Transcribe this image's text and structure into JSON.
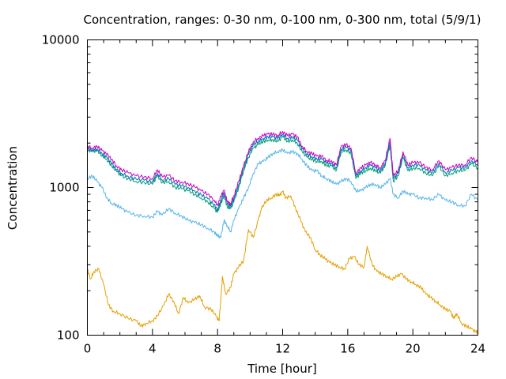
{
  "chart_data": {
    "type": "line",
    "title": "Concentration, ranges: 0-30 nm, 0-100 nm, 0-300 nm, total (5/9/1)",
    "xlabel": "Time [hour]",
    "ylabel": "Concentration",
    "xlim": [
      0,
      24
    ],
    "ylim": [
      100,
      10000
    ],
    "yscale": "log",
    "grid": false,
    "legend": "none",
    "xticks": [
      0,
      4,
      8,
      12,
      16,
      20,
      24
    ],
    "xtick_labels": [
      "0",
      "4",
      "8",
      "12",
      "16",
      "20",
      "24"
    ],
    "yticks": [
      100,
      1000,
      10000
    ],
    "ytick_labels": [
      "100",
      "1000",
      "10000"
    ],
    "series": [
      {
        "color": "#e69f00",
        "x": [
          0,
          0.2,
          0.4,
          0.7,
          1.0,
          1.3,
          1.6,
          2.0,
          2.5,
          3.0,
          3.3,
          3.6,
          4.0,
          4.3,
          4.7,
          5.0,
          5.3,
          5.6,
          5.9,
          6.2,
          6.6,
          6.9,
          7.2,
          7.6,
          7.9,
          8.1,
          8.3,
          8.5,
          8.8,
          9.0,
          9.3,
          9.6,
          9.9,
          10.2,
          10.5,
          10.7,
          11.0,
          11.3,
          11.6,
          11.8,
          12.0,
          12.2,
          12.5,
          12.8,
          13.1,
          13.4,
          13.7,
          14.0,
          14.3,
          14.6,
          14.9,
          15.2,
          15.5,
          15.8,
          16.1,
          16.4,
          16.7,
          17.0,
          17.2,
          17.5,
          17.8,
          18.1,
          18.4,
          18.7,
          19.0,
          19.3,
          19.6,
          19.9,
          20.2,
          20.5,
          20.8,
          21.1,
          21.4,
          21.7,
          22.0,
          22.3,
          22.5,
          22.7,
          23.0,
          23.3,
          23.6,
          23.9,
          24.0
        ],
        "values": [
          280,
          240,
          270,
          280,
          220,
          160,
          145,
          140,
          130,
          125,
          115,
          120,
          125,
          135,
          160,
          190,
          170,
          140,
          180,
          165,
          175,
          185,
          155,
          150,
          135,
          125,
          250,
          190,
          210,
          260,
          290,
          320,
          520,
          460,
          600,
          720,
          820,
          850,
          900,
          880,
          940,
          850,
          880,
          720,
          600,
          500,
          460,
          380,
          350,
          330,
          310,
          300,
          290,
          280,
          330,
          340,
          300,
          290,
          400,
          300,
          270,
          260,
          250,
          240,
          250,
          260,
          240,
          230,
          220,
          210,
          190,
          180,
          170,
          160,
          150,
          145,
          130,
          140,
          120,
          115,
          110,
          105,
          105
        ]
      },
      {
        "color": "#56b4e9",
        "x": [
          0,
          0.3,
          0.6,
          0.9,
          1.2,
          1.5,
          1.8,
          2.1,
          2.5,
          3.0,
          3.5,
          4.0,
          4.3,
          4.6,
          5.0,
          5.4,
          5.8,
          6.2,
          6.6,
          7.0,
          7.4,
          7.8,
          8.0,
          8.2,
          8.4,
          8.6,
          8.8,
          9.0,
          9.3,
          9.6,
          9.9,
          10.2,
          10.5,
          10.8,
          11.1,
          11.4,
          11.7,
          12.0,
          12.3,
          12.6,
          12.9,
          13.2,
          13.5,
          13.8,
          14.1,
          14.4,
          14.7,
          15.0,
          15.3,
          15.6,
          15.9,
          16.2,
          16.5,
          16.8,
          17.1,
          17.4,
          17.7,
          18.0,
          18.3,
          18.6,
          18.8,
          19.1,
          19.4,
          19.7,
          20.0,
          20.4,
          20.8,
          21.2,
          21.6,
          22.0,
          22.4,
          22.8,
          23.2,
          23.6,
          24.0
        ],
        "values": [
          1150,
          1200,
          1100,
          1000,
          850,
          780,
          760,
          720,
          680,
          650,
          640,
          630,
          690,
          650,
          720,
          670,
          640,
          600,
          580,
          560,
          530,
          500,
          470,
          460,
          600,
          550,
          500,
          600,
          720,
          850,
          1000,
          1250,
          1450,
          1500,
          1600,
          1700,
          1750,
          1800,
          1700,
          1750,
          1700,
          1550,
          1400,
          1300,
          1300,
          1200,
          1150,
          1100,
          1050,
          1100,
          1150,
          1100,
          950,
          950,
          1000,
          1050,
          1050,
          1000,
          1050,
          1150,
          900,
          850,
          950,
          900,
          900,
          850,
          850,
          830,
          900,
          820,
          800,
          760,
          750,
          900,
          820
        ]
      },
      {
        "color": "#009e73",
        "x": [
          0,
          0.3,
          0.6,
          0.9,
          1.2,
          1.5,
          1.8,
          2.1,
          2.5,
          3.0,
          3.5,
          4.0,
          4.3,
          4.6,
          5.0,
          5.4,
          5.8,
          6.2,
          6.6,
          7.0,
          7.4,
          7.8,
          8.0,
          8.2,
          8.4,
          8.6,
          8.8,
          9.0,
          9.3,
          9.6,
          9.9,
          10.2,
          10.5,
          10.8,
          11.1,
          11.4,
          11.7,
          12.0,
          12.3,
          12.6,
          12.9,
          13.2,
          13.5,
          13.8,
          14.1,
          14.4,
          14.7,
          15.0,
          15.3,
          15.6,
          15.9,
          16.2,
          16.5,
          16.8,
          17.1,
          17.4,
          17.7,
          18.0,
          18.3,
          18.6,
          18.8,
          19.1,
          19.4,
          19.7,
          20.0,
          20.4,
          20.8,
          21.2,
          21.6,
          22.0,
          22.4,
          22.8,
          23.2,
          23.6,
          24.0
        ],
        "values": [
          1800,
          1750,
          1780,
          1650,
          1550,
          1400,
          1280,
          1200,
          1150,
          1100,
          1080,
          1050,
          1200,
          1080,
          1100,
          1000,
          980,
          950,
          900,
          850,
          800,
          720,
          680,
          780,
          880,
          740,
          720,
          800,
          1000,
          1300,
          1600,
          1850,
          1950,
          2050,
          2100,
          2100,
          2050,
          2200,
          2050,
          2100,
          2000,
          1750,
          1600,
          1550,
          1500,
          1500,
          1400,
          1400,
          1300,
          1750,
          1800,
          1700,
          1150,
          1250,
          1300,
          1350,
          1300,
          1250,
          1400,
          1950,
          1100,
          1200,
          1600,
          1300,
          1350,
          1350,
          1250,
          1200,
          1400,
          1200,
          1250,
          1300,
          1300,
          1450,
          1350
        ]
      },
      {
        "color": "#0072b2",
        "x": [
          0,
          0.3,
          0.6,
          0.9,
          1.2,
          1.5,
          1.8,
          2.1,
          2.5,
          3.0,
          3.5,
          4.0,
          4.3,
          4.6,
          5.0,
          5.4,
          5.8,
          6.2,
          6.6,
          7.0,
          7.4,
          7.8,
          8.0,
          8.2,
          8.4,
          8.6,
          8.8,
          9.0,
          9.3,
          9.6,
          9.9,
          10.2,
          10.5,
          10.8,
          11.1,
          11.4,
          11.7,
          12.0,
          12.3,
          12.6,
          12.9,
          13.2,
          13.5,
          13.8,
          14.1,
          14.4,
          14.7,
          15.0,
          15.3,
          15.6,
          15.9,
          16.2,
          16.5,
          16.8,
          17.1,
          17.4,
          17.7,
          18.0,
          18.3,
          18.6,
          18.8,
          19.1,
          19.4,
          19.7,
          20.0,
          20.4,
          20.8,
          21.2,
          21.6,
          22.0,
          22.4,
          22.8,
          23.2,
          23.6,
          24.0
        ],
        "values": [
          1830,
          1790,
          1820,
          1700,
          1600,
          1450,
          1320,
          1250,
          1190,
          1140,
          1120,
          1090,
          1250,
          1120,
          1150,
          1050,
          1030,
          1000,
          950,
          890,
          840,
          760,
          710,
          820,
          920,
          770,
          750,
          840,
          1050,
          1350,
          1680,
          1950,
          2050,
          2150,
          2200,
          2200,
          2150,
          2300,
          2150,
          2200,
          2100,
          1830,
          1680,
          1620,
          1560,
          1560,
          1460,
          1460,
          1360,
          1820,
          1880,
          1780,
          1200,
          1300,
          1360,
          1420,
          1360,
          1300,
          1460,
          2050,
          1150,
          1250,
          1680,
          1360,
          1420,
          1420,
          1310,
          1260,
          1460,
          1260,
          1310,
          1360,
          1360,
          1520,
          1420
        ]
      },
      {
        "color": "#cc00cc",
        "x": [
          0,
          0.3,
          0.6,
          0.9,
          1.2,
          1.5,
          1.8,
          2.1,
          2.5,
          3.0,
          3.5,
          4.0,
          4.3,
          4.6,
          5.0,
          5.4,
          5.8,
          6.2,
          6.6,
          7.0,
          7.4,
          7.8,
          8.0,
          8.2,
          8.4,
          8.6,
          8.8,
          9.0,
          9.3,
          9.6,
          9.9,
          10.2,
          10.5,
          10.8,
          11.1,
          11.4,
          11.7,
          12.0,
          12.3,
          12.6,
          12.9,
          13.2,
          13.5,
          13.8,
          14.1,
          14.4,
          14.7,
          15.0,
          15.3,
          15.6,
          15.9,
          16.2,
          16.5,
          16.8,
          17.1,
          17.4,
          17.7,
          18.0,
          18.3,
          18.6,
          18.8,
          19.1,
          19.4,
          19.7,
          20.0,
          20.4,
          20.8,
          21.2,
          21.6,
          22.0,
          22.4,
          22.8,
          23.2,
          23.6,
          24.0
        ],
        "values": [
          1900,
          1850,
          1900,
          1780,
          1680,
          1550,
          1400,
          1320,
          1260,
          1200,
          1180,
          1150,
          1320,
          1180,
          1210,
          1110,
          1090,
          1060,
          1010,
          950,
          900,
          820,
          760,
          870,
          960,
          800,
          780,
          880,
          1100,
          1400,
          1750,
          2050,
          2150,
          2250,
          2300,
          2300,
          2250,
          2400,
          2250,
          2300,
          2200,
          1900,
          1750,
          1700,
          1630,
          1630,
          1520,
          1520,
          1420,
          1900,
          1950,
          1850,
          1250,
          1360,
          1420,
          1480,
          1420,
          1360,
          1520,
          2150,
          1200,
          1300,
          1750,
          1420,
          1480,
          1480,
          1370,
          1320,
          1520,
          1320,
          1370,
          1420,
          1420,
          1600,
          1480
        ]
      }
    ]
  }
}
